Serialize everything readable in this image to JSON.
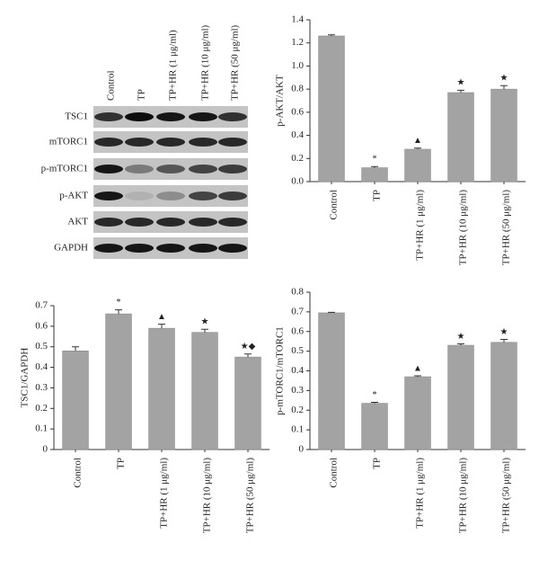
{
  "blot": {
    "lanes": [
      "Control",
      "TP",
      "TP+HR (1 μg/ml)",
      "TP+HR (10 μg/ml)",
      "TP+HR (50 μg/ml)"
    ],
    "rows": [
      "TSC1",
      "mTORC1",
      "p-mTORC1",
      "p-AKT",
      "AKT",
      "GAPDH"
    ]
  },
  "chart_data": [
    {
      "type": "bar",
      "ylabel": "p-AKT/AKT",
      "categories": [
        "Control",
        "TP",
        "TP+HR (1 μg/ml)",
        "TP+HR (10 μg/ml)",
        "TP+HR (50 μg/ml)"
      ],
      "values": [
        1.26,
        0.12,
        0.28,
        0.77,
        0.8
      ],
      "errors": [
        0.01,
        0.01,
        0.01,
        0.02,
        0.03
      ],
      "annotations": [
        null,
        "*",
        "▲",
        "★",
        "★"
      ],
      "color": "#a3a3a3",
      "ylim": [
        0,
        1.4
      ],
      "yticks": [
        {
          "value": 0,
          "label": "0.0"
        },
        {
          "value": 0.2,
          "label": "0.2"
        },
        {
          "value": 0.4,
          "label": "0.4"
        },
        {
          "value": 0.6,
          "label": "0.6"
        },
        {
          "value": 0.8,
          "label": "0.8"
        },
        {
          "value": 1,
          "label": "1.0"
        },
        {
          "value": 1.2,
          "label": "1.2"
        },
        {
          "value": 1.4,
          "label": "1.4"
        }
      ]
    },
    {
      "type": "bar",
      "ylabel": "TSC1/GAPDH",
      "categories": [
        "Control",
        "TP",
        "TP+HR (1 μg/ml)",
        "TP+HR (10 μg/ml)",
        "TP+HR (50 μg/ml)"
      ],
      "values": [
        0.48,
        0.66,
        0.59,
        0.57,
        0.45
      ],
      "errors": [
        0.02,
        0.02,
        0.02,
        0.015,
        0.015
      ],
      "annotations": [
        null,
        "*",
        "▲",
        "★",
        "★◆"
      ],
      "color": "#a3a3a3",
      "ylim": [
        0,
        0.7
      ],
      "yticks": [
        0,
        0.1,
        0.2,
        0.3,
        0.4,
        0.5,
        0.6,
        0.7
      ]
    },
    {
      "type": "bar",
      "ylabel": "p-mTORC1/mTORC1",
      "categories": [
        "Control",
        "TP",
        "TP+HR (1 μg/ml)",
        "TP+HR (10 μg/ml)",
        "TP+HR (50 μg/ml)"
      ],
      "values": [
        0.695,
        0.235,
        0.37,
        0.53,
        0.545
      ],
      "errors": [
        0.003,
        0.005,
        0.005,
        0.007,
        0.015
      ],
      "annotations": [
        null,
        "*",
        "▲",
        "★",
        "★"
      ],
      "color": "#a3a3a3",
      "ylim": [
        0,
        0.8
      ],
      "yticks": [
        0,
        0.1,
        0.2,
        0.3,
        0.4,
        0.5,
        0.6,
        0.7,
        0.8
      ]
    }
  ]
}
